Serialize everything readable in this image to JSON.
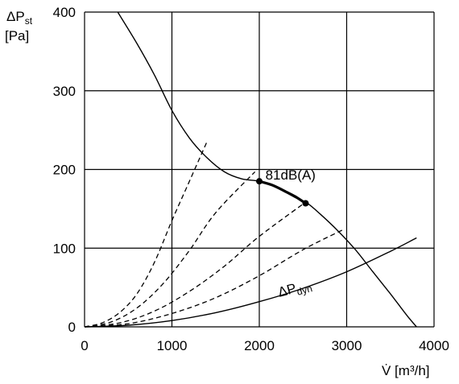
{
  "chart_data": {
    "type": "line",
    "title": "",
    "ylabel_line1": "ΔP",
    "ylabel_line1_sub": "st",
    "ylabel_line2": "[Pa]",
    "xlabel": "V̇ [m³/h]",
    "xlim": [
      0,
      4000
    ],
    "ylim": [
      0,
      400
    ],
    "xticks": [
      0,
      1000,
      2000,
      3000,
      4000
    ],
    "yticks": [
      0,
      100,
      200,
      300,
      400
    ],
    "xtick_labels": [
      "0",
      "1000",
      "2000",
      "3000",
      "4000"
    ],
    "ytick_labels": [
      "0",
      "100",
      "200",
      "300",
      "400"
    ],
    "grid": true,
    "series": [
      {
        "style": "solid",
        "points": [
          [
            380,
            400
          ],
          [
            600,
            360
          ],
          [
            800,
            320
          ],
          [
            1000,
            275
          ],
          [
            1200,
            240
          ],
          [
            1400,
            215
          ],
          [
            1600,
            197
          ],
          [
            1800,
            188
          ],
          [
            2000,
            185
          ],
          [
            2200,
            177
          ],
          [
            2400,
            165
          ],
          [
            2550,
            157
          ],
          [
            2700,
            143
          ],
          [
            2900,
            122
          ],
          [
            3100,
            98
          ],
          [
            3300,
            70
          ],
          [
            3500,
            42
          ],
          [
            3700,
            13
          ],
          [
            3800,
            0
          ]
        ]
      },
      {
        "style": "bold",
        "points": [
          [
            2000,
            185
          ],
          [
            2150,
            180
          ],
          [
            2300,
            172
          ],
          [
            2420,
            165
          ],
          [
            2530,
            157
          ]
        ]
      },
      {
        "name": "ΔP",
        "style": "solid",
        "points": [
          [
            0,
            0
          ],
          [
            500,
            2
          ],
          [
            1000,
            8
          ],
          [
            1500,
            18
          ],
          [
            2000,
            32
          ],
          [
            2500,
            49
          ],
          [
            3000,
            70
          ],
          [
            3500,
            96
          ],
          [
            3800,
            113
          ]
        ]
      },
      {
        "style": "dashed",
        "points": [
          [
            0,
            0
          ],
          [
            200,
            5
          ],
          [
            400,
            18
          ],
          [
            600,
            42
          ],
          [
            800,
            82
          ],
          [
            1000,
            135
          ],
          [
            1200,
            185
          ],
          [
            1400,
            235
          ]
        ]
      },
      {
        "style": "dashed",
        "points": [
          [
            0,
            0
          ],
          [
            300,
            6
          ],
          [
            600,
            24
          ],
          [
            900,
            55
          ],
          [
            1200,
            97
          ],
          [
            1500,
            145
          ],
          [
            1950,
            197
          ]
        ]
      },
      {
        "style": "dashed",
        "points": [
          [
            0,
            0
          ],
          [
            400,
            5
          ],
          [
            800,
            20
          ],
          [
            1200,
            45
          ],
          [
            1600,
            77
          ],
          [
            2000,
            115
          ],
          [
            2550,
            160
          ]
        ]
      },
      {
        "style": "dashed",
        "points": [
          [
            0,
            0
          ],
          [
            500,
            4
          ],
          [
            1000,
            17
          ],
          [
            1500,
            37
          ],
          [
            2000,
            65
          ],
          [
            2500,
            98
          ],
          [
            2950,
            123
          ]
        ]
      }
    ],
    "markers": [
      [
        2000,
        185
      ],
      [
        2530,
        157
      ]
    ],
    "annotations": [
      {
        "text": "81dB(A)",
        "x": 2070,
        "y": 187
      },
      {
        "text": "ΔP",
        "sub": "dyn",
        "x": 2230,
        "y": 38
      }
    ]
  }
}
